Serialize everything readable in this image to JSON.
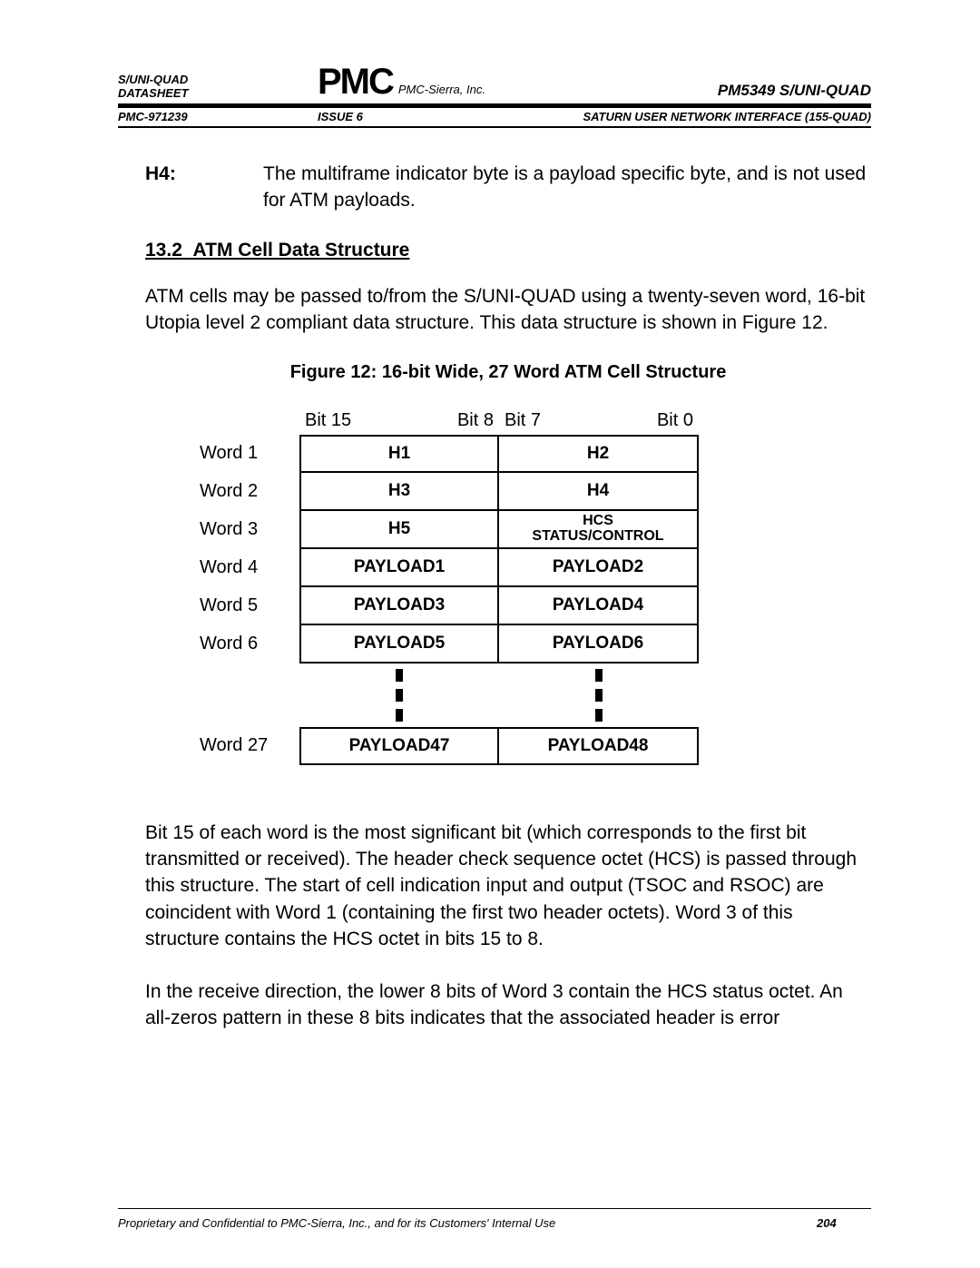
{
  "header": {
    "left_line1": "S/UNI-QUAD",
    "left_line2": "DATASHEET",
    "company": "PMC-Sierra, Inc.",
    "product": "PM5349 S/UNI-QUAD",
    "docnum": "PMC-971239",
    "issue": "ISSUE 6",
    "subtitle": "SATURN USER NETWORK INTERFACE (155-QUAD)",
    "logo_text": "PMC"
  },
  "body": {
    "h4_label": "H4:",
    "h4_text": "The multiframe indicator byte is a payload specific byte, and is not used for ATM payloads.",
    "section_num": "13.2",
    "section_title": "ATM Cell Data Structure",
    "para1": "ATM cells may be passed to/from the S/UNI-QUAD using a twenty-seven word, 16-bit Utopia level 2 compliant data structure.  This data structure is shown in Figure 12.",
    "fig_caption": "Figure 12: 16-bit Wide, 27 Word ATM Cell Structure",
    "para2": "Bit 15 of each word is the most significant bit (which corresponds to the first bit transmitted or received).  The header check sequence octet (HCS) is passed through this structure.  The start of cell indication input and output (TSOC and RSOC) are coincident with Word 1 (containing the first two header octets).  Word 3 of this structure contains the HCS octet in bits 15 to 8.",
    "para3": "In the receive direction, the lower 8 bits of Word 3 contain the HCS status octet.  An all-zeros pattern in these 8 bits indicates that the associated header is error"
  },
  "figure": {
    "bits": {
      "b15": "Bit 15",
      "b8": "Bit 8",
      "b7": "Bit 7",
      "b0": "Bit 0"
    },
    "rows": [
      {
        "word": "Word 1",
        "left": "H1",
        "right": "H2"
      },
      {
        "word": "Word 2",
        "left": "H3",
        "right": "H4"
      },
      {
        "word": "Word 3",
        "left": "H5",
        "right": "HCS\nSTATUS/CONTROL",
        "small": true
      },
      {
        "word": "Word 4",
        "left": "PAYLOAD1",
        "right": "PAYLOAD2"
      },
      {
        "word": "Word 5",
        "left": "PAYLOAD3",
        "right": "PAYLOAD4"
      },
      {
        "word": "Word 6",
        "left": "PAYLOAD5",
        "right": "PAYLOAD6"
      }
    ],
    "last": {
      "word": "Word 27",
      "left": "PAYLOAD47",
      "right": "PAYLOAD48"
    }
  },
  "footer": {
    "text": "Proprietary and Confidential to PMC-Sierra, Inc., and for its Customers' Internal Use",
    "page": "204"
  },
  "colors": {
    "text": "#000000",
    "bg": "#ffffff"
  }
}
